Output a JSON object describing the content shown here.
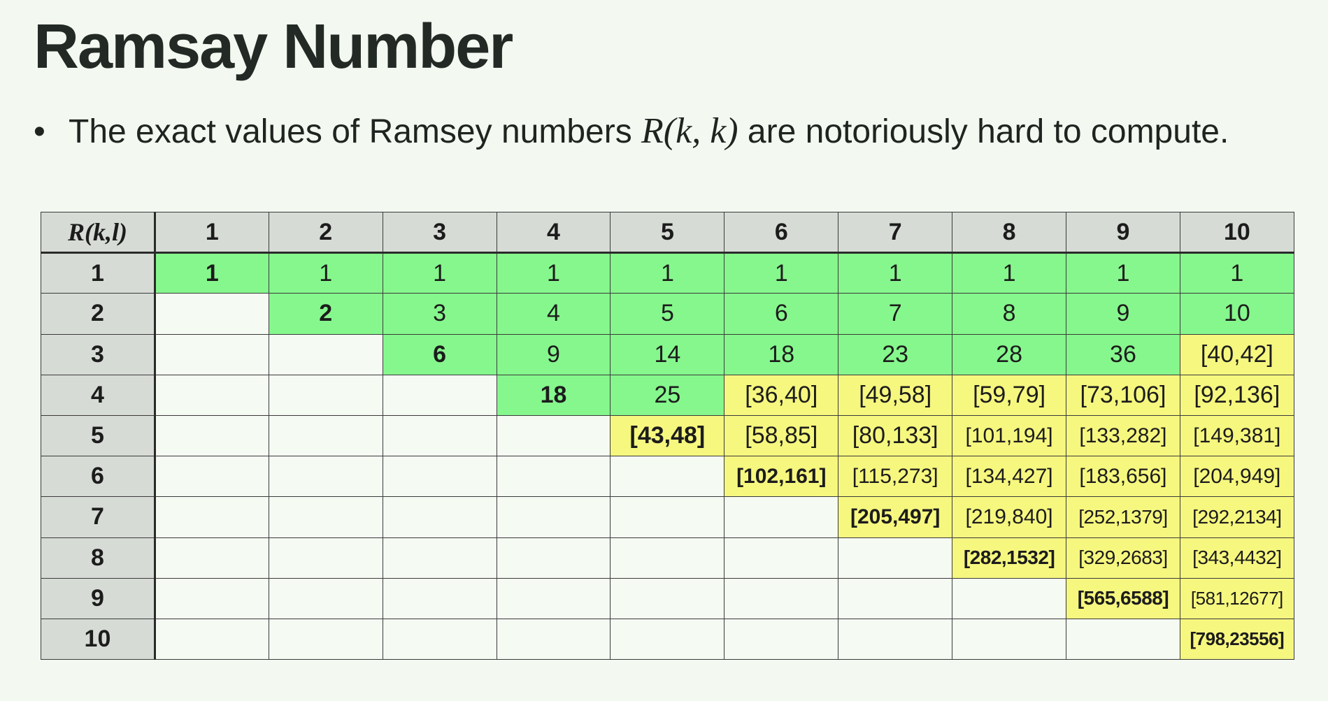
{
  "title": "Ramsay Number",
  "bullet": {
    "text_before": "The exact values of Ramsey numbers ",
    "math": "R(k, k)",
    "text_after": " are notoriously hard to compute."
  },
  "table": {
    "corner": "R(k,l)",
    "columns": [
      "1",
      "2",
      "3",
      "4",
      "5",
      "6",
      "7",
      "8",
      "9",
      "10"
    ],
    "rows": [
      {
        "label": "1",
        "cells": [
          "1",
          "1",
          "1",
          "1",
          "1",
          "1",
          "1",
          "1",
          "1",
          "1"
        ]
      },
      {
        "label": "2",
        "cells": [
          "",
          "2",
          "3",
          "4",
          "5",
          "6",
          "7",
          "8",
          "9",
          "10"
        ]
      },
      {
        "label": "3",
        "cells": [
          "",
          "",
          "6",
          "9",
          "14",
          "18",
          "23",
          "28",
          "36",
          "[40,42]"
        ]
      },
      {
        "label": "4",
        "cells": [
          "",
          "",
          "",
          "18",
          "25",
          "[36,40]",
          "[49,58]",
          "[59,79]",
          "[73,106]",
          "[92,136]"
        ]
      },
      {
        "label": "5",
        "cells": [
          "",
          "",
          "",
          "",
          "[43,48]",
          "[58,85]",
          "[80,133]",
          "[101,194]",
          "[133,282]",
          "[149,381]"
        ]
      },
      {
        "label": "6",
        "cells": [
          "",
          "",
          "",
          "",
          "",
          "[102,161]",
          "[115,273]",
          "[134,427]",
          "[183,656]",
          "[204,949]"
        ]
      },
      {
        "label": "7",
        "cells": [
          "",
          "",
          "",
          "",
          "",
          "",
          "[205,497]",
          "[219,840]",
          "[252,1379]",
          "[292,2134]"
        ]
      },
      {
        "label": "8",
        "cells": [
          "",
          "",
          "",
          "",
          "",
          "",
          "",
          "[282,1532]",
          "[329,2683]",
          "[343,4432]"
        ]
      },
      {
        "label": "9",
        "cells": [
          "",
          "",
          "",
          "",
          "",
          "",
          "",
          "",
          "[565,6588]",
          "[581,12677]"
        ]
      },
      {
        "label": "10",
        "cells": [
          "",
          "",
          "",
          "",
          "",
          "",
          "",
          "",
          "",
          "[798,23556]"
        ]
      }
    ],
    "colors": {
      "known": "#86f78d",
      "bounds": "#f6f77f",
      "header": "#d7dbd6",
      "empty": "#f5faf3"
    }
  }
}
